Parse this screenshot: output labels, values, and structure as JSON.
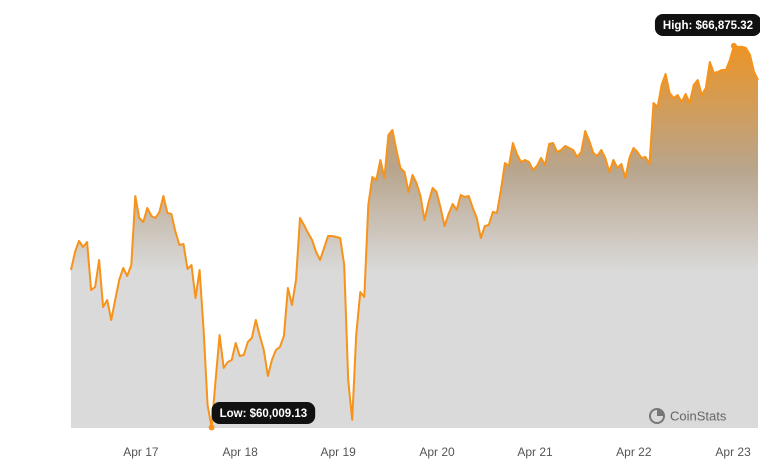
{
  "chart_data": {
    "type": "area",
    "color": "#f7931a",
    "values": [
      62842,
      63166,
      63364,
      63256,
      63346,
      62483,
      62537,
      63022,
      62177,
      62303,
      61943,
      62303,
      62663,
      62878,
      62734,
      62932,
      64174,
      63778,
      63706,
      63958,
      63814,
      63778,
      63886,
      64174,
      63868,
      63850,
      63526,
      63292,
      63310,
      62860,
      62932,
      62339,
      62842,
      61763,
      60414,
      60009.13,
      60864,
      61673,
      61079,
      61187,
      61223,
      61529,
      61295,
      61313,
      61547,
      61619,
      61943,
      61655,
      61403,
      60935,
      61223,
      61403,
      61457,
      61655,
      62519,
      62213,
      62663,
      63778,
      63652,
      63508,
      63382,
      63166,
      63022,
      63238,
      63454,
      63454,
      63436,
      63418,
      62932,
      60864,
      60144,
      61673,
      62447,
      62357,
      64012,
      64515,
      64462,
      64821,
      64498,
      65271,
      65361,
      65001,
      64677,
      64605,
      64246,
      64551,
      64408,
      64174,
      63742,
      64066,
      64318,
      64246,
      63958,
      63634,
      63850,
      64030,
      63922,
      64192,
      64156,
      64174,
      63958,
      63778,
      63418,
      63634,
      63652,
      63886,
      63868,
      64282,
      64767,
      64713,
      65127,
      64929,
      64785,
      64821,
      64785,
      64641,
      64713,
      64857,
      64731,
      65109,
      65127,
      64965,
      65001,
      65073,
      65037,
      65001,
      64875,
      64965,
      65343,
      65163,
      64947,
      64893,
      65001,
      64857,
      64605,
      64821,
      64677,
      64749,
      64498,
      64857,
      65037,
      64965,
      64857,
      64875,
      64749,
      65847,
      65775,
      66171,
      66368,
      66027,
      65937,
      65991,
      65865,
      66009,
      65847,
      66171,
      66261,
      65991,
      66117,
      66584,
      66386,
      66404,
      66440,
      66440,
      66620,
      66875.32,
      66854,
      66860,
      66836,
      66710,
      66404,
      66261
    ],
    "high_label": "High: $66,875.32",
    "low_label": "Low: $60,009.13",
    "watermark": "CoinStats",
    "xlim": [
      0,
      171
    ],
    "xticks": [
      {
        "value": 17.4,
        "label": "Apr 17"
      },
      {
        "value": 42.1,
        "label": "Apr 18"
      },
      {
        "value": 66.5,
        "label": "Apr 19"
      },
      {
        "value": 91.1,
        "label": "Apr 20"
      },
      {
        "value": 115.5,
        "label": "Apr 21"
      },
      {
        "value": 140.1,
        "label": "Apr 22"
      },
      {
        "value": 164.8,
        "label": "Apr 23"
      }
    ],
    "ylim": [
      60000,
      67700
    ]
  }
}
